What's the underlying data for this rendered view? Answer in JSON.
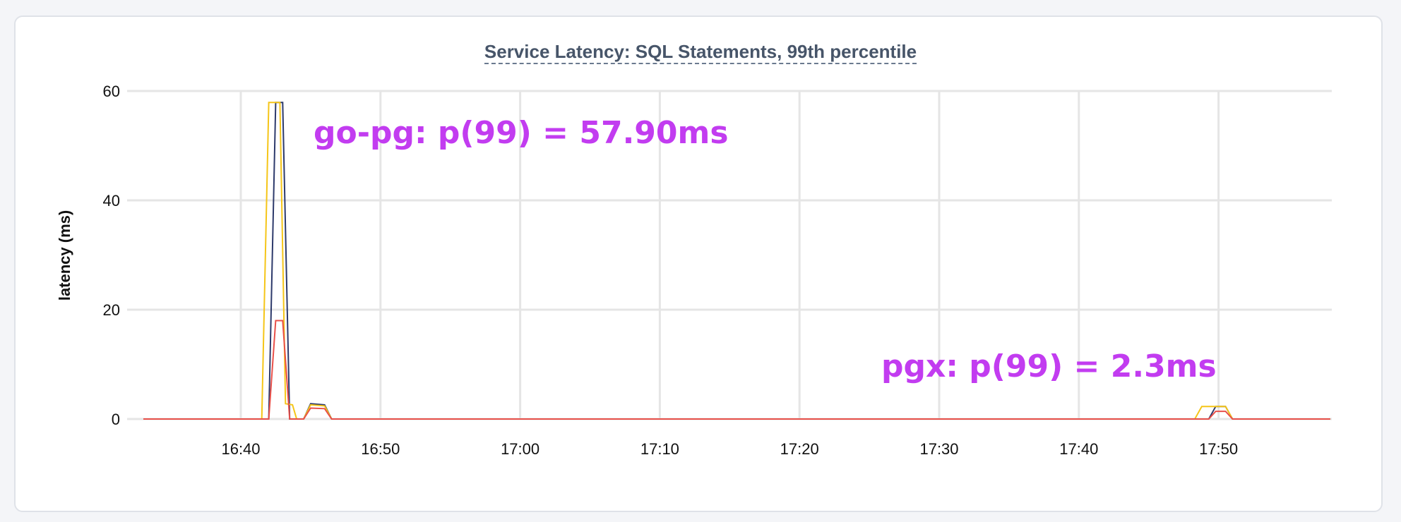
{
  "chart_data": {
    "type": "line",
    "title": "Service Latency: SQL Statements, 99th percentile",
    "xlabel": "",
    "ylabel": "latency (ms)",
    "ylim": [
      0,
      60
    ],
    "yticks": [
      0,
      20,
      40,
      60
    ],
    "xticks": [
      "16:40",
      "16:50",
      "17:00",
      "17:10",
      "17:20",
      "17:30",
      "17:40",
      "17:50"
    ],
    "grid": true,
    "annotations": [
      {
        "text": "go-pg:  p(99) = 57.90ms"
      },
      {
        "text": "pgx:  p(99) = 2.3ms"
      }
    ],
    "series": [
      {
        "color": "#2d3a6b",
        "points": [
          [
            "16:33",
            0
          ],
          [
            "16:42",
            0
          ],
          [
            "16:42.5",
            57.9
          ],
          [
            "16:43",
            57.9
          ],
          [
            "16:43.5",
            0
          ],
          [
            "16:44.5",
            0
          ],
          [
            "16:45",
            2.8
          ],
          [
            "16:46",
            2.6
          ],
          [
            "16:46.5",
            0
          ],
          [
            "17:49.3",
            0
          ],
          [
            "17:49.8",
            2.3
          ],
          [
            "17:50.5",
            2.3
          ],
          [
            "17:51",
            0
          ],
          [
            "17:58",
            0
          ]
        ]
      },
      {
        "color": "#f5c518",
        "points": [
          [
            "16:33",
            0
          ],
          [
            "16:41.5",
            0
          ],
          [
            "16:42",
            57.9
          ],
          [
            "16:42.8",
            57.9
          ],
          [
            "16:43.2",
            2.8
          ],
          [
            "16:43.7",
            2.6
          ],
          [
            "16:44",
            0
          ],
          [
            "16:44.5",
            0
          ],
          [
            "16:45",
            2.6
          ],
          [
            "16:46",
            2.4
          ],
          [
            "16:46.5",
            0
          ],
          [
            "17:48.3",
            0
          ],
          [
            "17:48.8",
            2.3
          ],
          [
            "17:50.5",
            2.3
          ],
          [
            "17:51",
            0
          ],
          [
            "17:58",
            0
          ]
        ]
      },
      {
        "color": "#e8504a",
        "points": [
          [
            "16:33",
            0
          ],
          [
            "16:42",
            0
          ],
          [
            "16:42.5",
            18
          ],
          [
            "16:43",
            18
          ],
          [
            "16:43.5",
            0
          ],
          [
            "16:44.5",
            0
          ],
          [
            "16:45",
            2
          ],
          [
            "16:46",
            1.9
          ],
          [
            "16:46.5",
            0
          ],
          [
            "17:49.3",
            0
          ],
          [
            "17:49.8",
            1.4
          ],
          [
            "17:50.5",
            1.4
          ],
          [
            "17:51",
            0
          ],
          [
            "17:58",
            0
          ]
        ]
      }
    ]
  }
}
